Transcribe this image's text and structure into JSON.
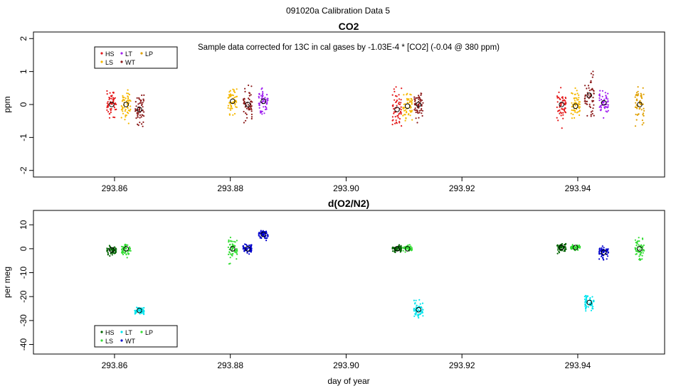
{
  "page_title": "091020a   Calibration Data 5",
  "xlabel": "day of year",
  "colors": {
    "HS": "#e41a1c",
    "LS": "#f5b800",
    "LT": "#a020f0",
    "WT": "#8b1a1a",
    "LP": "#e0a000",
    "HS_o2": "#006400",
    "LS_o2": "#33dd33",
    "LT_o2": "#00e5ee",
    "WT_o2": "#0000cd",
    "LP_o2": "#33dd33"
  },
  "chart_data": [
    {
      "type": "scatter",
      "title": "CO2",
      "subtitle": "Sample data corrected for 13C in cal gases by -1.03E-4 * [CO2] (-0.04 @ 380 ppm)",
      "xlabel": "",
      "ylabel": "ppm",
      "xlim": [
        293.846,
        293.955
      ],
      "ylim": [
        -2.2,
        2.2
      ],
      "x_ticks": [
        "293.86",
        "293.88",
        "293.90",
        "293.92",
        "293.94"
      ],
      "x_tick_values": [
        293.86,
        293.88,
        293.9,
        293.92,
        293.94
      ],
      "y_ticks": [
        "-2",
        "-1",
        "0",
        "1",
        "2"
      ],
      "y_tick_values": [
        -2,
        -1,
        0,
        1,
        2
      ],
      "grid": false,
      "legend": {
        "position": "top-left",
        "entries": [
          "HS",
          "LT",
          "LP",
          "LS",
          "WT"
        ]
      },
      "series": [
        {
          "name": "HS",
          "color_key": "HS",
          "x": [
            293.8595,
            293.9088,
            293.9372
          ],
          "mean": [
            0.0,
            -0.15,
            0.0
          ],
          "spread": [
            0.6,
            0.75,
            0.6
          ]
        },
        {
          "name": "LS",
          "color_key": "LS",
          "x": [
            293.862,
            293.8804,
            293.9106,
            293.9396
          ],
          "mean": [
            0.0,
            0.1,
            -0.05,
            -0.05
          ],
          "spread": [
            0.6,
            0.6,
            0.6,
            0.6
          ]
        },
        {
          "name": "WT",
          "color_key": "WT",
          "x": [
            293.8643,
            293.883,
            293.9125,
            293.942
          ],
          "mean": [
            -0.15,
            0.0,
            0.0,
            0.28
          ],
          "spread": [
            0.6,
            0.65,
            0.55,
            0.7
          ]
        },
        {
          "name": "LT",
          "color_key": "LT",
          "x": [
            293.8857,
            293.9445
          ],
          "mean": [
            0.1,
            0.05
          ],
          "spread": [
            0.5,
            0.5
          ]
        },
        {
          "name": "LP",
          "color_key": "LP",
          "x": [
            293.9507
          ],
          "mean": [
            0.0
          ],
          "spread": [
            0.75
          ]
        }
      ]
    },
    {
      "type": "scatter",
      "title": "d(O2/N2)",
      "xlabel": "day of year",
      "ylabel": "per meg",
      "xlim": [
        293.846,
        293.955
      ],
      "ylim": [
        -44,
        16
      ],
      "x_ticks": [
        "293.86",
        "293.88",
        "293.90",
        "293.92",
        "293.94"
      ],
      "x_tick_values": [
        293.86,
        293.88,
        293.9,
        293.92,
        293.94
      ],
      "y_ticks": [
        "-40",
        "-30",
        "-20",
        "-10",
        "0",
        "10"
      ],
      "y_tick_values": [
        -40,
        -30,
        -20,
        -10,
        0,
        10
      ],
      "grid": false,
      "legend": {
        "position": "bottom-left",
        "entries": [
          "HS",
          "LT",
          "LP",
          "LS",
          "WT"
        ]
      },
      "series": [
        {
          "name": "HS",
          "color_key": "HS_o2",
          "x": [
            293.8595,
            293.9088,
            293.9372
          ],
          "mean": [
            -0.5,
            0.0,
            0.5
          ],
          "spread": [
            2.5,
            1.8,
            2.5
          ]
        },
        {
          "name": "LS",
          "color_key": "LS_o2",
          "x": [
            293.862,
            293.8804,
            293.9106,
            293.9396
          ],
          "mean": [
            0.0,
            0.0,
            0.0,
            0.5
          ],
          "spread": [
            3.0,
            6.0,
            1.8,
            1.2
          ]
        },
        {
          "name": "LT",
          "color_key": "LT_o2",
          "x": [
            293.8643,
            293.9125,
            293.942
          ],
          "mean": [
            -25.8,
            -25.5,
            -22.5
          ],
          "spread": [
            2.2,
            4.5,
            4.0
          ]
        },
        {
          "name": "WT",
          "color_key": "WT_o2",
          "x": [
            293.883,
            293.8857,
            293.9445
          ],
          "mean": [
            0.0,
            6.0,
            -1.5
          ],
          "spread": [
            2.5,
            2.5,
            3.5
          ]
        },
        {
          "name": "LP",
          "color_key": "LP_o2",
          "x": [
            293.9507
          ],
          "mean": [
            0.0
          ],
          "spread": [
            5.5
          ]
        }
      ]
    }
  ]
}
